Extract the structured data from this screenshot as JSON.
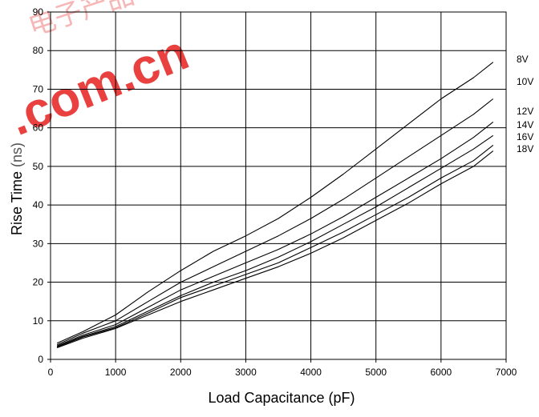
{
  "watermark": {
    "text": ".com.cn",
    "color": "#e8312f"
  },
  "chart_data": {
    "type": "line",
    "title": "",
    "xlabel": "Load Capacitance (pF)",
    "ylabel": "Rise Time (ns)",
    "ylabel_main": "Rise Time",
    "ylabel_unit": "(ns)",
    "xlim": [
      0,
      7000
    ],
    "ylim": [
      0,
      90
    ],
    "x_ticks": [
      0,
      1000,
      2000,
      3000,
      4000,
      5000,
      6000,
      7000
    ],
    "y_ticks": [
      0,
      10,
      20,
      30,
      40,
      50,
      60,
      70,
      80,
      90
    ],
    "grid": true,
    "legend": "labels at right end of each line",
    "series": [
      {
        "name": "8V",
        "x": [
          100,
          500,
          1000,
          1500,
          2000,
          2500,
          3000,
          3500,
          4000,
          4500,
          5000,
          5500,
          6000,
          6500,
          6800
        ],
        "y": [
          4.2,
          7.2,
          11.5,
          17.5,
          23,
          28,
          32,
          36.5,
          42,
          48,
          54.5,
          61,
          67.5,
          73,
          77
        ]
      },
      {
        "name": "10V",
        "x": [
          100,
          500,
          1000,
          1500,
          2000,
          2500,
          3000,
          3500,
          4000,
          4500,
          5000,
          5500,
          6000,
          6500,
          6800
        ],
        "y": [
          3.8,
          6.8,
          10,
          15,
          20,
          24,
          28,
          32,
          36.5,
          41.5,
          47,
          52.5,
          58,
          63.5,
          67.5
        ]
      },
      {
        "name": "12V",
        "x": [
          100,
          500,
          1000,
          1500,
          2000,
          2500,
          3000,
          3500,
          4000,
          4500,
          5000,
          5500,
          6000,
          6500,
          6800
        ],
        "y": [
          3.5,
          6.3,
          9,
          13.5,
          18,
          21.5,
          25,
          28.5,
          32.5,
          37,
          42,
          47,
          52,
          57.5,
          61.5
        ]
      },
      {
        "name": "14V",
        "x": [
          100,
          500,
          1000,
          1500,
          2000,
          2500,
          3000,
          3500,
          4000,
          4500,
          5000,
          5500,
          6000,
          6500,
          6800
        ],
        "y": [
          3.3,
          6,
          8.5,
          12.5,
          16.5,
          20,
          23,
          26.5,
          30.5,
          35,
          39.5,
          44.5,
          49.5,
          54.5,
          58
        ]
      },
      {
        "name": "16V",
        "x": [
          100,
          500,
          1000,
          1500,
          2000,
          2500,
          3000,
          3500,
          4000,
          4500,
          5000,
          5500,
          6000,
          6500,
          6800
        ],
        "y": [
          3.2,
          5.8,
          8.2,
          12,
          16,
          19,
          22,
          25,
          29,
          33,
          37.5,
          42,
          47,
          51.5,
          55.5
        ]
      },
      {
        "name": "18V",
        "x": [
          100,
          500,
          1000,
          1500,
          2000,
          2500,
          3000,
          3500,
          4000,
          4500,
          5000,
          5500,
          6000,
          6500,
          6800
        ],
        "y": [
          3,
          5.5,
          8,
          11.5,
          15,
          18,
          21,
          24,
          27.5,
          31.5,
          36,
          40.5,
          45.5,
          50,
          54
        ]
      }
    ]
  }
}
